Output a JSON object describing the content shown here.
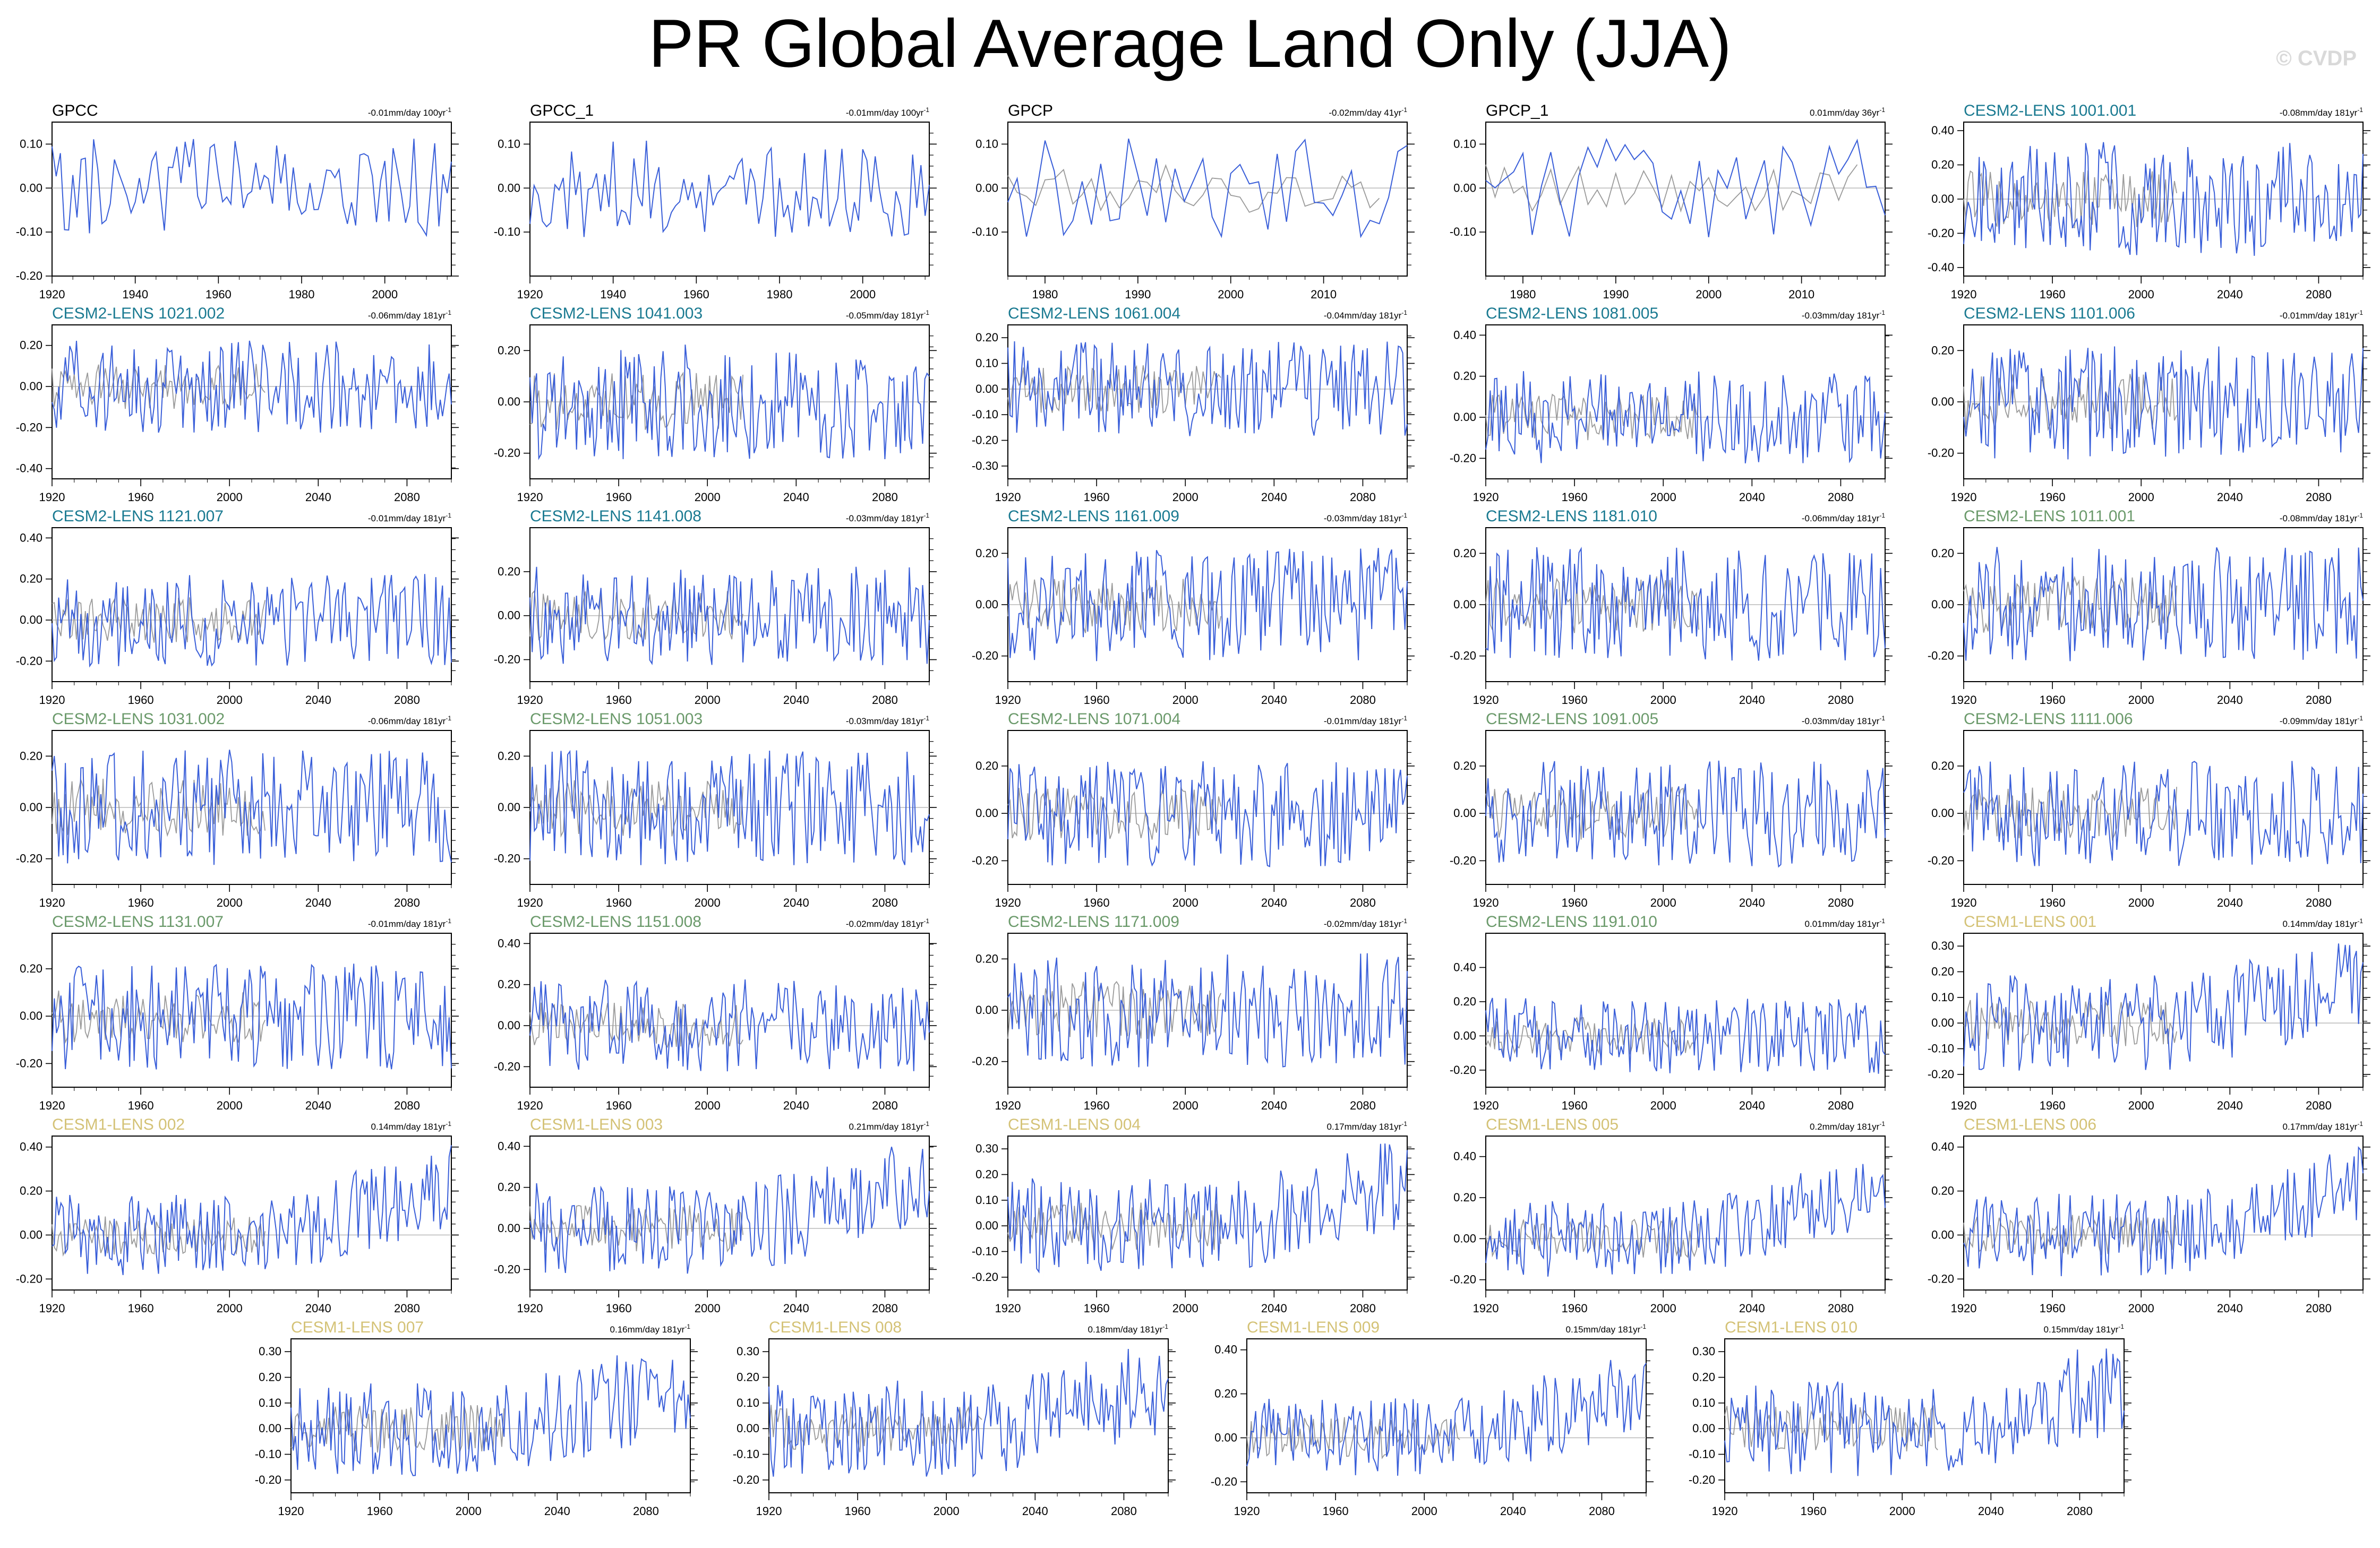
{
  "title": "PR Global Average Land Only (JJA)",
  "watermark": "© CVDP",
  "colors": {
    "observation": "#000000",
    "cesm2_lens_a": "#1a7a91",
    "cesm2_lens_b": "#6b9a6b",
    "cesm1_lens": "#d4c276",
    "model_line": "#3a5fd9",
    "obs_line": "#9a9a9a"
  },
  "chart_data": [
    {
      "type": "line",
      "title": "GPCC",
      "trend": "-0.01mm/day 100yr",
      "trend_sup": "-1",
      "color": "observation",
      "xlim": [
        1920,
        2016
      ],
      "xticks": [
        1920,
        1940,
        1960,
        1980,
        2000
      ],
      "ylim": [
        -0.2,
        0.15
      ],
      "yticks": [
        -0.2,
        -0.1,
        0,
        0.1
      ],
      "overlay": false,
      "seed": 11
    },
    {
      "type": "line",
      "title": "GPCC_1",
      "trend": "-0.01mm/day 100yr",
      "trend_sup": "-1",
      "color": "observation",
      "xlim": [
        1920,
        2016
      ],
      "xticks": [
        1920,
        1940,
        1960,
        1980,
        2000
      ],
      "ylim": [
        -0.2,
        0.15
      ],
      "yticks": [
        -0.1,
        0,
        0.1
      ],
      "overlay": false,
      "seed": 12
    },
    {
      "type": "line",
      "title": "GPCP",
      "trend": "-0.02mm/day 41yr",
      "trend_sup": "-1",
      "color": "observation",
      "xlim": [
        1976,
        2019
      ],
      "xticks": [
        1980,
        1990,
        2000,
        2010
      ],
      "ylim": [
        -0.2,
        0.15
      ],
      "yticks": [
        -0.1,
        0,
        0.1
      ],
      "overlay": true,
      "seed": 13
    },
    {
      "type": "line",
      "title": "GPCP_1",
      "trend": "0.01mm/day 36yr",
      "trend_sup": "-1",
      "color": "observation",
      "xlim": [
        1976,
        2019
      ],
      "xticks": [
        1980,
        1990,
        2000,
        2010
      ],
      "ylim": [
        -0.2,
        0.15
      ],
      "yticks": [
        -0.1,
        0,
        0.1
      ],
      "overlay": true,
      "seed": 14
    },
    {
      "type": "line",
      "title": "CESM2-LENS 1001.001",
      "trend": "-0.08mm/day 181yr",
      "trend_sup": "-1",
      "color": "cesm2_lens_a",
      "xlim": [
        1920,
        2100
      ],
      "xticks": [
        1920,
        1960,
        2000,
        2040,
        2080
      ],
      "ylim": [
        -0.45,
        0.45
      ],
      "yticks": [
        -0.4,
        -0.2,
        0,
        0.2,
        0.4
      ],
      "overlay": true,
      "seed": 21
    },
    {
      "type": "line",
      "title": "CESM2-LENS 1021.002",
      "trend": "-0.06mm/day 181yr",
      "trend_sup": "-1",
      "color": "cesm2_lens_a",
      "xlim": [
        1920,
        2100
      ],
      "xticks": [
        1920,
        1960,
        2000,
        2040,
        2080
      ],
      "ylim": [
        -0.45,
        0.3
      ],
      "yticks": [
        -0.4,
        -0.2,
        0,
        0.2
      ],
      "overlay": true,
      "seed": 22
    },
    {
      "type": "line",
      "title": "CESM2-LENS 1041.003",
      "trend": "-0.05mm/day 181yr",
      "trend_sup": "-1",
      "color": "cesm2_lens_a",
      "xlim": [
        1920,
        2100
      ],
      "xticks": [
        1920,
        1960,
        2000,
        2040,
        2080
      ],
      "ylim": [
        -0.3,
        0.3
      ],
      "yticks": [
        -0.2,
        0,
        0.2
      ],
      "overlay": true,
      "seed": 23
    },
    {
      "type": "line",
      "title": "CESM2-LENS 1061.004",
      "trend": "-0.04mm/day 181yr",
      "trend_sup": "-1",
      "color": "cesm2_lens_a",
      "xlim": [
        1920,
        2100
      ],
      "xticks": [
        1920,
        1960,
        2000,
        2040,
        2080
      ],
      "ylim": [
        -0.35,
        0.25
      ],
      "yticks": [
        -0.3,
        -0.2,
        -0.1,
        0,
        0.1,
        0.2
      ],
      "overlay": true,
      "seed": 24
    },
    {
      "type": "line",
      "title": "CESM2-LENS 1081.005",
      "trend": "-0.03mm/day 181yr",
      "trend_sup": "-1",
      "color": "cesm2_lens_a",
      "xlim": [
        1920,
        2100
      ],
      "xticks": [
        1920,
        1960,
        2000,
        2040,
        2080
      ],
      "ylim": [
        -0.3,
        0.45
      ],
      "yticks": [
        -0.2,
        0,
        0.2,
        0.4
      ],
      "overlay": true,
      "seed": 25
    },
    {
      "type": "line",
      "title": "CESM2-LENS 1101.006",
      "trend": "-0.01mm/day 181yr",
      "trend_sup": "-1",
      "color": "cesm2_lens_a",
      "xlim": [
        1920,
        2100
      ],
      "xticks": [
        1920,
        1960,
        2000,
        2040,
        2080
      ],
      "ylim": [
        -0.3,
        0.3
      ],
      "yticks": [
        -0.2,
        0,
        0.2
      ],
      "overlay": true,
      "seed": 26
    },
    {
      "type": "line",
      "title": "CESM2-LENS 1121.007",
      "trend": "-0.01mm/day 181yr",
      "trend_sup": "-1",
      "color": "cesm2_lens_a",
      "xlim": [
        1920,
        2100
      ],
      "xticks": [
        1920,
        1960,
        2000,
        2040,
        2080
      ],
      "ylim": [
        -0.3,
        0.45
      ],
      "yticks": [
        -0.2,
        0,
        0.2,
        0.4
      ],
      "overlay": true,
      "seed": 31
    },
    {
      "type": "line",
      "title": "CESM2-LENS 1141.008",
      "trend": "-0.03mm/day 181yr",
      "trend_sup": "-1",
      "color": "cesm2_lens_a",
      "xlim": [
        1920,
        2100
      ],
      "xticks": [
        1920,
        1960,
        2000,
        2040,
        2080
      ],
      "ylim": [
        -0.3,
        0.4
      ],
      "yticks": [
        -0.2,
        0,
        0.2
      ],
      "overlay": true,
      "seed": 32
    },
    {
      "type": "line",
      "title": "CESM2-LENS 1161.009",
      "trend": "-0.03mm/day 181yr",
      "trend_sup": "-1",
      "color": "cesm2_lens_a",
      "xlim": [
        1920,
        2100
      ],
      "xticks": [
        1920,
        1960,
        2000,
        2040,
        2080
      ],
      "ylim": [
        -0.3,
        0.3
      ],
      "yticks": [
        -0.2,
        0,
        0.2
      ],
      "overlay": true,
      "seed": 33
    },
    {
      "type": "line",
      "title": "CESM2-LENS 1181.010",
      "trend": "-0.06mm/day 181yr",
      "trend_sup": "-1",
      "color": "cesm2_lens_a",
      "xlim": [
        1920,
        2100
      ],
      "xticks": [
        1920,
        1960,
        2000,
        2040,
        2080
      ],
      "ylim": [
        -0.3,
        0.3
      ],
      "yticks": [
        -0.2,
        0,
        0.2
      ],
      "overlay": true,
      "seed": 34
    },
    {
      "type": "line",
      "title": "CESM2-LENS 1011.001",
      "trend": "-0.08mm/day 181yr",
      "trend_sup": "-1",
      "color": "cesm2_lens_b",
      "xlim": [
        1920,
        2100
      ],
      "xticks": [
        1920,
        1960,
        2000,
        2040,
        2080
      ],
      "ylim": [
        -0.3,
        0.3
      ],
      "yticks": [
        -0.2,
        0,
        0.2
      ],
      "overlay": true,
      "seed": 35
    },
    {
      "type": "line",
      "title": "CESM2-LENS 1031.002",
      "trend": "-0.06mm/day 181yr",
      "trend_sup": "-1",
      "color": "cesm2_lens_b",
      "xlim": [
        1920,
        2100
      ],
      "xticks": [
        1920,
        1960,
        2000,
        2040,
        2080
      ],
      "ylim": [
        -0.3,
        0.3
      ],
      "yticks": [
        -0.2,
        0,
        0.2
      ],
      "overlay": true,
      "seed": 41
    },
    {
      "type": "line",
      "title": "CESM2-LENS 1051.003",
      "trend": "-0.03mm/day 181yr",
      "trend_sup": "-1",
      "color": "cesm2_lens_b",
      "xlim": [
        1920,
        2100
      ],
      "xticks": [
        1920,
        1960,
        2000,
        2040,
        2080
      ],
      "ylim": [
        -0.3,
        0.3
      ],
      "yticks": [
        -0.2,
        0,
        0.2
      ],
      "overlay": true,
      "seed": 42
    },
    {
      "type": "line",
      "title": "CESM2-LENS 1071.004",
      "trend": "-0.01mm/day 181yr",
      "trend_sup": "-1",
      "color": "cesm2_lens_b",
      "xlim": [
        1920,
        2100
      ],
      "xticks": [
        1920,
        1960,
        2000,
        2040,
        2080
      ],
      "ylim": [
        -0.3,
        0.35
      ],
      "yticks": [
        -0.2,
        0,
        0.2
      ],
      "overlay": true,
      "seed": 43
    },
    {
      "type": "line",
      "title": "CESM2-LENS 1091.005",
      "trend": "-0.03mm/day 181yr",
      "trend_sup": "-1",
      "color": "cesm2_lens_b",
      "xlim": [
        1920,
        2100
      ],
      "xticks": [
        1920,
        1960,
        2000,
        2040,
        2080
      ],
      "ylim": [
        -0.3,
        0.35
      ],
      "yticks": [
        -0.2,
        0,
        0.2
      ],
      "overlay": true,
      "seed": 44
    },
    {
      "type": "line",
      "title": "CESM2-LENS 1111.006",
      "trend": "-0.09mm/day 181yr",
      "trend_sup": "-1",
      "color": "cesm2_lens_b",
      "xlim": [
        1920,
        2100
      ],
      "xticks": [
        1920,
        1960,
        2000,
        2040,
        2080
      ],
      "ylim": [
        -0.3,
        0.35
      ],
      "yticks": [
        -0.2,
        0,
        0.2
      ],
      "overlay": true,
      "seed": 45
    },
    {
      "type": "line",
      "title": "CESM2-LENS 1131.007",
      "trend": "-0.01mm/day 181yr",
      "trend_sup": "-1",
      "color": "cesm2_lens_b",
      "xlim": [
        1920,
        2100
      ],
      "xticks": [
        1920,
        1960,
        2000,
        2040,
        2080
      ],
      "ylim": [
        -0.3,
        0.35
      ],
      "yticks": [
        -0.2,
        0,
        0.2
      ],
      "overlay": true,
      "seed": 51
    },
    {
      "type": "line",
      "title": "CESM2-LENS 1151.008",
      "trend": "-0.02mm/day 181yr",
      "trend_sup": "-1",
      "color": "cesm2_lens_b",
      "xlim": [
        1920,
        2100
      ],
      "xticks": [
        1920,
        1960,
        2000,
        2040,
        2080
      ],
      "ylim": [
        -0.3,
        0.45
      ],
      "yticks": [
        -0.2,
        0,
        0.2,
        0.4
      ],
      "overlay": true,
      "seed": 52
    },
    {
      "type": "line",
      "title": "CESM2-LENS 1171.009",
      "trend": "-0.02mm/day 181yr",
      "trend_sup": "-1",
      "color": "cesm2_lens_b",
      "xlim": [
        1920,
        2100
      ],
      "xticks": [
        1920,
        1960,
        2000,
        2040,
        2080
      ],
      "ylim": [
        -0.3,
        0.3
      ],
      "yticks": [
        -0.2,
        0,
        0.2
      ],
      "overlay": true,
      "seed": 53
    },
    {
      "type": "line",
      "title": "CESM2-LENS 1191.010",
      "trend": "0.01mm/day 181yr",
      "trend_sup": "-1",
      "color": "cesm2_lens_b",
      "xlim": [
        1920,
        2100
      ],
      "xticks": [
        1920,
        1960,
        2000,
        2040,
        2080
      ],
      "ylim": [
        -0.3,
        0.6
      ],
      "yticks": [
        -0.2,
        0,
        0.2,
        0.4
      ],
      "overlay": true,
      "seed": 54
    },
    {
      "type": "line",
      "title": "CESM1-LENS 001",
      "trend": "0.14mm/day 181yr",
      "trend_sup": "-1",
      "color": "cesm1_lens",
      "xlim": [
        1920,
        2100
      ],
      "xticks": [
        1920,
        1960,
        2000,
        2040,
        2080
      ],
      "ylim": [
        -0.25,
        0.35
      ],
      "yticks": [
        -0.2,
        -0.1,
        0,
        0.1,
        0.2,
        0.3
      ],
      "overlay": true,
      "seed": 55
    },
    {
      "type": "line",
      "title": "CESM1-LENS 002",
      "trend": "0.14mm/day 181yr",
      "trend_sup": "-1",
      "color": "cesm1_lens",
      "xlim": [
        1920,
        2100
      ],
      "xticks": [
        1920,
        1960,
        2000,
        2040,
        2080
      ],
      "ylim": [
        -0.25,
        0.45
      ],
      "yticks": [
        -0.2,
        0,
        0.2,
        0.4
      ],
      "overlay": true,
      "seed": 61
    },
    {
      "type": "line",
      "title": "CESM1-LENS 003",
      "trend": "0.21mm/day 181yr",
      "trend_sup": "-1",
      "color": "cesm1_lens",
      "xlim": [
        1920,
        2100
      ],
      "xticks": [
        1920,
        1960,
        2000,
        2040,
        2080
      ],
      "ylim": [
        -0.3,
        0.45
      ],
      "yticks": [
        -0.2,
        0,
        0.2,
        0.4
      ],
      "overlay": true,
      "seed": 62
    },
    {
      "type": "line",
      "title": "CESM1-LENS 004",
      "trend": "0.17mm/day 181yr",
      "trend_sup": "-1",
      "color": "cesm1_lens",
      "xlim": [
        1920,
        2100
      ],
      "xticks": [
        1920,
        1960,
        2000,
        2040,
        2080
      ],
      "ylim": [
        -0.25,
        0.35
      ],
      "yticks": [
        -0.2,
        -0.1,
        0,
        0.1,
        0.2,
        0.3
      ],
      "overlay": true,
      "seed": 63
    },
    {
      "type": "line",
      "title": "CESM1-LENS 005",
      "trend": "0.2mm/day 181yr",
      "trend_sup": "-1",
      "color": "cesm1_lens",
      "xlim": [
        1920,
        2100
      ],
      "xticks": [
        1920,
        1960,
        2000,
        2040,
        2080
      ],
      "ylim": [
        -0.25,
        0.5
      ],
      "yticks": [
        -0.2,
        0,
        0.2,
        0.4
      ],
      "overlay": true,
      "seed": 64
    },
    {
      "type": "line",
      "title": "CESM1-LENS 006",
      "trend": "0.17mm/day 181yr",
      "trend_sup": "-1",
      "color": "cesm1_lens",
      "xlim": [
        1920,
        2100
      ],
      "xticks": [
        1920,
        1960,
        2000,
        2040,
        2080
      ],
      "ylim": [
        -0.25,
        0.45
      ],
      "yticks": [
        -0.2,
        0,
        0.2,
        0.4
      ],
      "overlay": true,
      "seed": 65
    },
    {
      "type": "line",
      "title": "CESM1-LENS 007",
      "trend": "0.16mm/day 181yr",
      "trend_sup": "-1",
      "color": "cesm1_lens",
      "xlim": [
        1920,
        2100
      ],
      "xticks": [
        1920,
        1960,
        2000,
        2040,
        2080
      ],
      "ylim": [
        -0.25,
        0.35
      ],
      "yticks": [
        -0.2,
        -0.1,
        0,
        0.1,
        0.2,
        0.3
      ],
      "overlay": true,
      "seed": 71
    },
    {
      "type": "line",
      "title": "CESM1-LENS 008",
      "trend": "0.18mm/day 181yr",
      "trend_sup": "-1",
      "color": "cesm1_lens",
      "xlim": [
        1920,
        2100
      ],
      "xticks": [
        1920,
        1960,
        2000,
        2040,
        2080
      ],
      "ylim": [
        -0.25,
        0.35
      ],
      "yticks": [
        -0.2,
        -0.1,
        0,
        0.1,
        0.2,
        0.3
      ],
      "overlay": true,
      "seed": 72
    },
    {
      "type": "line",
      "title": "CESM1-LENS 009",
      "trend": "0.15mm/day 181yr",
      "trend_sup": "-1",
      "color": "cesm1_lens",
      "xlim": [
        1920,
        2100
      ],
      "xticks": [
        1920,
        1960,
        2000,
        2040,
        2080
      ],
      "ylim": [
        -0.25,
        0.45
      ],
      "yticks": [
        -0.2,
        0,
        0.2,
        0.4
      ],
      "overlay": true,
      "seed": 73
    },
    {
      "type": "line",
      "title": "CESM1-LENS 010",
      "trend": "0.15mm/day 181yr",
      "trend_sup": "-1",
      "color": "cesm1_lens",
      "xlim": [
        1920,
        2100
      ],
      "xticks": [
        1920,
        1960,
        2000,
        2040,
        2080
      ],
      "ylim": [
        -0.25,
        0.35
      ],
      "yticks": [
        -0.2,
        -0.1,
        0,
        0.1,
        0.2,
        0.3
      ],
      "overlay": true,
      "seed": 74
    }
  ]
}
